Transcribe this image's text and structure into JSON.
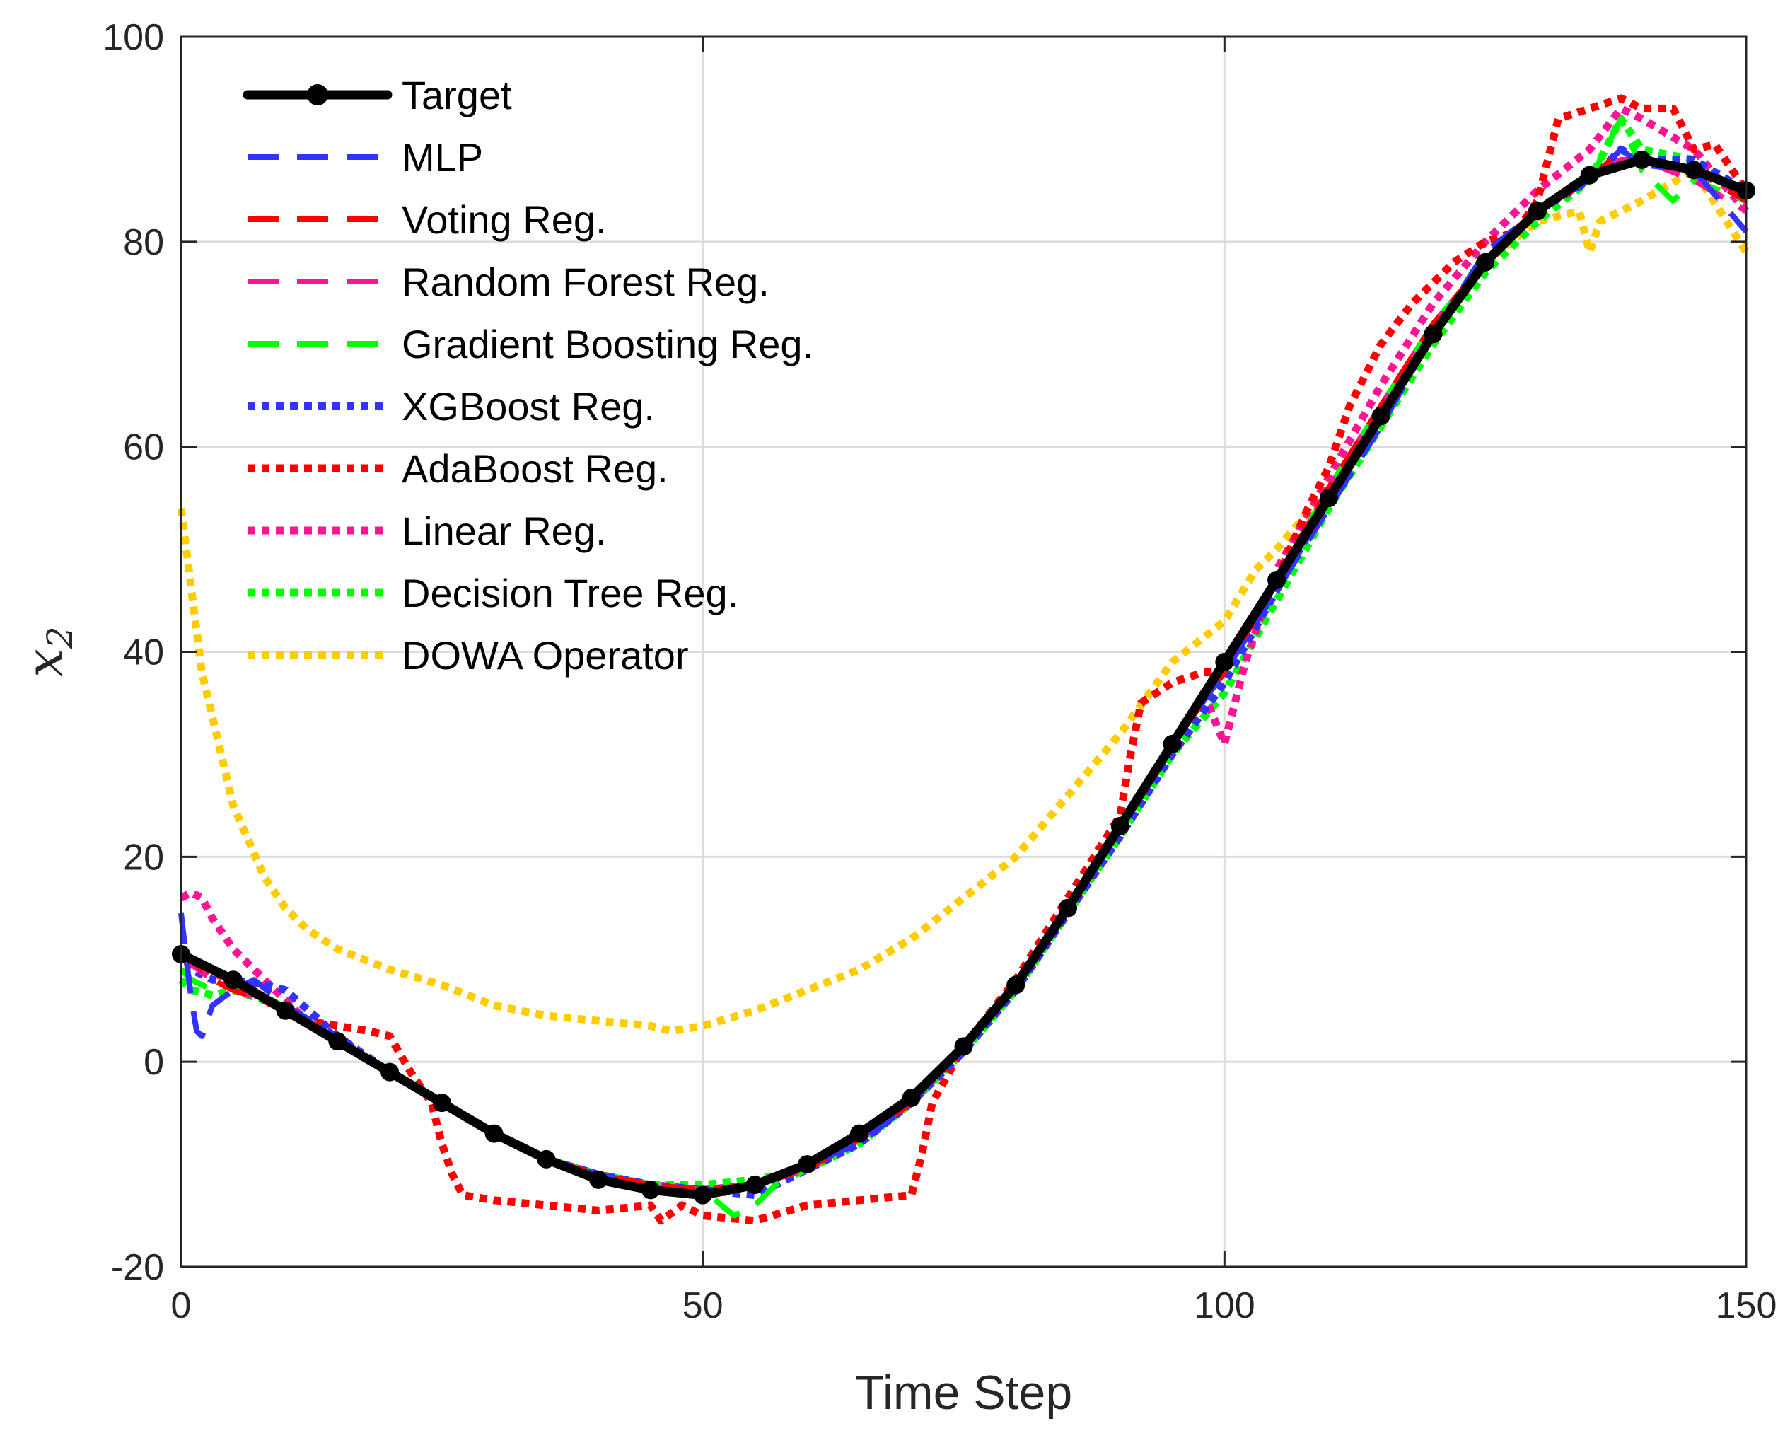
{
  "chart_data": {
    "type": "line",
    "title": "",
    "xlabel": "Time Step",
    "ylabel": "x",
    "ylabel_subscript": "2",
    "xlim": [
      0,
      150
    ],
    "ylim": [
      -20,
      100
    ],
    "xticks": [
      0,
      50,
      100,
      150
    ],
    "xtick_labels": [
      "0",
      "50",
      "100",
      "150"
    ],
    "yticks": [
      -20,
      0,
      20,
      40,
      60,
      80,
      100
    ],
    "ytick_labels": [
      "-20",
      "0",
      "20",
      "40",
      "60",
      "80",
      "100"
    ],
    "grid": true,
    "legend_position": "top-left",
    "series": [
      {
        "name": "Target",
        "color": "#000000",
        "style": "solid-marker",
        "x": [
          0,
          5,
          10,
          15,
          20,
          25,
          30,
          35,
          40,
          45,
          50,
          55,
          60,
          65,
          70,
          75,
          80,
          85,
          90,
          95,
          100,
          105,
          110,
          115,
          120,
          125,
          130,
          135,
          140,
          145,
          150
        ],
        "y": [
          10.5,
          8,
          5,
          2,
          -1,
          -4,
          -7,
          -9.5,
          -11.5,
          -12.5,
          -13,
          -12,
          -10,
          -7,
          -3.5,
          1.5,
          7.5,
          15,
          23,
          31,
          39,
          47,
          55,
          63,
          71,
          78,
          83,
          86.5,
          88,
          87,
          85
        ]
      },
      {
        "name": "MLP",
        "color": "#3333ff",
        "style": "dashed",
        "x": [
          0,
          0.5,
          1,
          1.5,
          2,
          3,
          5,
          7,
          10,
          15,
          20,
          25,
          30,
          35,
          40,
          45,
          50,
          55,
          60,
          65,
          70,
          75,
          80,
          85,
          90,
          95,
          100,
          105,
          110,
          115,
          120,
          125,
          130,
          135,
          138,
          140,
          145,
          150
        ],
        "y": [
          14.5,
          10,
          6,
          3,
          2.5,
          5.5,
          7,
          8,
          5.5,
          2.5,
          -1,
          -4,
          -7,
          -9.5,
          -11,
          -12.5,
          -12.8,
          -12,
          -10,
          -8,
          -4,
          1.5,
          7.5,
          15,
          23,
          31,
          38,
          46,
          54,
          62,
          71,
          79,
          83,
          86,
          89,
          87.5,
          87,
          81
        ]
      },
      {
        "name": "Voting Reg.",
        "color": "#ff0000",
        "style": "dashed",
        "x": [
          0,
          1,
          3,
          5,
          8,
          12,
          16,
          20,
          25,
          30,
          35,
          40,
          45,
          50,
          55,
          60,
          65,
          70,
          75,
          80,
          85,
          90,
          95,
          100,
          105,
          110,
          115,
          120,
          125,
          130,
          135,
          138,
          140,
          145,
          150
        ],
        "y": [
          11,
          10,
          8,
          7,
          6,
          4,
          1.5,
          -1,
          -4,
          -7,
          -9.5,
          -11,
          -12,
          -12.5,
          -12,
          -10.5,
          -7.5,
          -4,
          1.5,
          7.5,
          15,
          23,
          31,
          38,
          47,
          56,
          64,
          72,
          78,
          83,
          86,
          89,
          88,
          87,
          84
        ]
      },
      {
        "name": "Random Forest Reg.",
        "color": "#ff1493",
        "style": "dashed",
        "x": [
          0,
          1,
          3,
          5,
          8,
          12,
          16,
          20,
          25,
          30,
          35,
          40,
          45,
          50,
          55,
          60,
          65,
          70,
          75,
          80,
          85,
          90,
          95,
          100,
          105,
          110,
          115,
          120,
          125,
          130,
          135,
          138,
          140,
          145,
          150
        ],
        "y": [
          10,
          9.5,
          8,
          7,
          6,
          4,
          1.5,
          -1,
          -4,
          -7,
          -9.5,
          -11,
          -12,
          -12.5,
          -12,
          -10.5,
          -7.5,
          -4,
          1.5,
          7.5,
          15,
          23,
          31,
          38,
          47,
          56,
          64,
          72,
          78,
          83,
          86,
          88,
          88,
          86,
          83
        ]
      },
      {
        "name": "Gradient Boosting Reg.",
        "color": "#00ff00",
        "style": "dashed",
        "x": [
          0,
          1,
          3,
          5,
          8,
          12,
          16,
          20,
          25,
          30,
          35,
          40,
          45,
          50,
          53,
          55,
          57,
          60,
          65,
          70,
          75,
          80,
          85,
          90,
          95,
          100,
          105,
          110,
          115,
          120,
          125,
          130,
          135,
          138,
          140,
          143,
          145,
          150
        ],
        "y": [
          9,
          8,
          7,
          7.5,
          6.5,
          4,
          1.5,
          -1,
          -4,
          -7,
          -9.5,
          -11,
          -12,
          -12.5,
          -15,
          -14,
          -12,
          -10.5,
          -7.5,
          -4,
          1.5,
          7.5,
          15,
          23,
          31,
          38,
          47,
          56,
          64,
          72,
          78,
          83,
          86,
          92,
          87,
          84,
          86,
          84
        ]
      },
      {
        "name": "XGBoost Reg.",
        "color": "#3333ff",
        "style": "dotted",
        "x": [
          0,
          1,
          3,
          5,
          8,
          10,
          15,
          20,
          25,
          30,
          35,
          40,
          45,
          50,
          55,
          60,
          65,
          70,
          75,
          80,
          85,
          90,
          95,
          100,
          105,
          110,
          115,
          120,
          125,
          130,
          135,
          138,
          140,
          145,
          150
        ],
        "y": [
          11,
          9,
          8,
          8,
          7.5,
          7,
          2.5,
          -1,
          -4,
          -7,
          -9.5,
          -11,
          -12,
          -12.5,
          -13,
          -10.5,
          -8,
          -4,
          1,
          7,
          14.5,
          22,
          30,
          37,
          46,
          55,
          63,
          71,
          78,
          83,
          86,
          89,
          88,
          88,
          85
        ]
      },
      {
        "name": "AdaBoost Reg.",
        "color": "#ff0000",
        "style": "dotted",
        "x": [
          0,
          2,
          5,
          8,
          12,
          15,
          18,
          20,
          22,
          24,
          25,
          26,
          27,
          30,
          35,
          40,
          45,
          46,
          48,
          50,
          55,
          60,
          65,
          70,
          71,
          72,
          75,
          80,
          85,
          90,
          91,
          92,
          95,
          98,
          100,
          102,
          105,
          108,
          110,
          112,
          115,
          118,
          120,
          122,
          125,
          128,
          130,
          132,
          135,
          138,
          140,
          143,
          145,
          147,
          150
        ],
        "y": [
          11,
          9,
          8,
          6,
          4,
          3.5,
          3,
          2.5,
          -1,
          -4,
          -8,
          -11,
          -13,
          -13.5,
          -14,
          -14.5,
          -14,
          -15.5,
          -14,
          -15,
          -15.5,
          -14,
          -13.5,
          -13,
          -9,
          -4,
          1.5,
          8,
          16,
          24,
          30,
          35,
          37,
          38,
          38,
          42,
          47,
          54,
          58,
          64,
          70,
          74,
          76,
          78,
          80,
          81,
          84,
          92,
          93,
          94,
          93,
          93,
          89,
          89.5,
          85
        ]
      },
      {
        "name": "Linear Reg.",
        "color": "#ff1493",
        "style": "dotted",
        "x": [
          0,
          1,
          2,
          3,
          5,
          8,
          12,
          16,
          20,
          25,
          30,
          35,
          40,
          45,
          50,
          55,
          60,
          65,
          70,
          75,
          80,
          85,
          90,
          95,
          98,
          100,
          102,
          105,
          110,
          115,
          120,
          125,
          130,
          135,
          138,
          140,
          145,
          150
        ],
        "y": [
          16,
          16.5,
          16,
          14,
          11,
          8,
          4,
          1.5,
          -1,
          -4,
          -7,
          -9.5,
          -11,
          -12,
          -12.5,
          -12,
          -10.5,
          -7.5,
          -4,
          1.5,
          7.5,
          15,
          23,
          31,
          36,
          31,
          39,
          48,
          57,
          66,
          74,
          80,
          85,
          89,
          93,
          92,
          89,
          83
        ]
      },
      {
        "name": "Decision Tree Reg.",
        "color": "#00ff00",
        "style": "dotted",
        "x": [
          0,
          1,
          3,
          5,
          8,
          12,
          16,
          20,
          25,
          30,
          35,
          40,
          45,
          50,
          55,
          60,
          65,
          70,
          75,
          80,
          85,
          90,
          95,
          100,
          105,
          110,
          115,
          120,
          125,
          130,
          135,
          138,
          140,
          145,
          150
        ],
        "y": [
          8,
          7,
          6.5,
          7,
          6,
          4,
          1.5,
          -1,
          -4,
          -7,
          -9.5,
          -11,
          -12,
          -12,
          -11.5,
          -10.5,
          -8,
          -4,
          1,
          7,
          14.5,
          22,
          30,
          36,
          45,
          54,
          62,
          70,
          77,
          82,
          86,
          92,
          89,
          88,
          84
        ]
      },
      {
        "name": "DOWA Operator",
        "color": "#ffcc00",
        "style": "dotted",
        "x": [
          0,
          2,
          5,
          8,
          10,
          12,
          15,
          20,
          25,
          30,
          35,
          40,
          45,
          47,
          50,
          55,
          60,
          65,
          70,
          75,
          80,
          85,
          90,
          95,
          100,
          103,
          105,
          110,
          115,
          120,
          125,
          130,
          134,
          135,
          136,
          140,
          145,
          150
        ],
        "y": [
          54,
          38,
          25,
          18,
          15,
          13,
          11,
          9,
          7.5,
          5.5,
          4.5,
          4,
          3.5,
          3,
          3.5,
          5,
          7,
          9,
          12,
          16,
          20,
          26,
          32,
          39,
          43,
          48,
          50,
          56,
          63,
          71,
          78,
          82,
          83,
          79,
          82,
          84,
          87,
          79
        ]
      }
    ]
  }
}
